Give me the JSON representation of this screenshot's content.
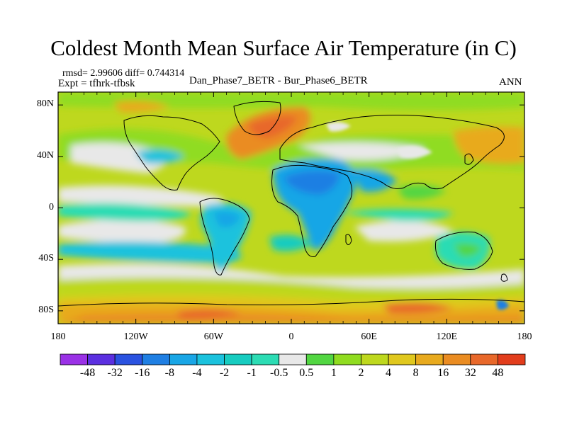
{
  "chart_data": {
    "type": "heatmap",
    "title": "Coldest Month Mean Surface Air Temperature (in C)",
    "stats_line": "rmsd= 2.99606 diff= 0.744314",
    "expt_line": "Expt = tfhrk-tfbsk",
    "comparison": "Dan_Phase7_BETR - Bur_Phase6_BETR",
    "season": "ANN",
    "x_ticks": [
      {
        "value": -180,
        "label": "180"
      },
      {
        "value": -120,
        "label": "120W"
      },
      {
        "value": -60,
        "label": "60W"
      },
      {
        "value": 0,
        "label": "0"
      },
      {
        "value": 60,
        "label": "60E"
      },
      {
        "value": 120,
        "label": "120E"
      },
      {
        "value": 180,
        "label": "180"
      }
    ],
    "y_ticks": [
      {
        "value": 80,
        "label": "80N"
      },
      {
        "value": 40,
        "label": "40N"
      },
      {
        "value": 0,
        "label": "0"
      },
      {
        "value": -40,
        "label": "40S"
      },
      {
        "value": -80,
        "label": "80S"
      }
    ],
    "xlim": [
      -180,
      180
    ],
    "ylim": [
      -90,
      90
    ],
    "colorbar": {
      "colors": [
        "#9a31e6",
        "#5b2fe0",
        "#2a52e0",
        "#1f7fe3",
        "#19a6e6",
        "#1bc2dd",
        "#17ccc0",
        "#2cdcb4",
        "#e8e8e8",
        "#52d642",
        "#90dc20",
        "#bed81e",
        "#e0c81e",
        "#e8aa1e",
        "#ea8c22",
        "#e8682a",
        "#e23d1c"
      ],
      "labels": [
        "-48",
        "-32",
        "-16",
        "-8",
        "-4",
        "-2",
        "-1",
        "-0.5",
        "0.5",
        "1",
        "2",
        "4",
        "8",
        "16",
        "32",
        "48"
      ]
    },
    "regions": [
      {
        "name": "northern ocean band",
        "lon": [
          -180,
          180
        ],
        "lat": [
          55,
          90
        ],
        "level": "2"
      },
      {
        "name": "north pacific",
        "lon": [
          -180,
          -110
        ],
        "lat": [
          10,
          55
        ],
        "level": "1"
      },
      {
        "name": "north atlantic warm anomaly",
        "lon": [
          -60,
          -10
        ],
        "lat": [
          45,
          70
        ],
        "level": "16"
      },
      {
        "name": "africa cold anomaly",
        "lon": [
          -15,
          50
        ],
        "lat": [
          -30,
          30
        ],
        "level": "-4"
      },
      {
        "name": "south america cold anomaly",
        "lon": [
          -80,
          -35
        ],
        "lat": [
          -40,
          5
        ],
        "level": "-2"
      },
      {
        "name": "australia cold anomaly",
        "lon": [
          115,
          150
        ],
        "lat": [
          -38,
          -12
        ],
        "level": "-1"
      },
      {
        "name": "southern ocean band",
        "lon": [
          -180,
          180
        ],
        "lat": [
          -65,
          -45
        ],
        "level": "2"
      },
      {
        "name": "antarctic warm band",
        "lon": [
          -180,
          180
        ],
        "lat": [
          -90,
          -70
        ],
        "level": "8"
      },
      {
        "name": "east asia warm anomaly",
        "lon": [
          110,
          160
        ],
        "lat": [
          40,
          70
        ],
        "level": "8"
      }
    ]
  }
}
